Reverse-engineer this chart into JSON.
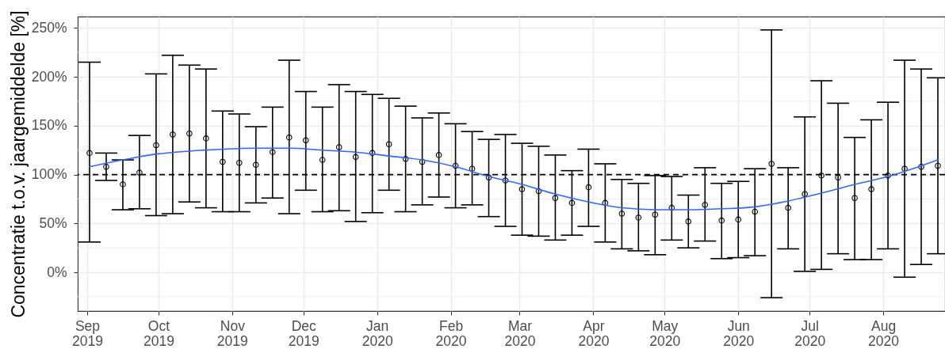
{
  "chart_data": {
    "type": "scatter",
    "ylabel": "Concentratie t.o.v. jaargemiddelde [%]",
    "x": [
      "2019-09-02",
      "2019-09-09",
      "2019-09-16",
      "2019-09-23",
      "2019-09-30",
      "2019-10-07",
      "2019-10-14",
      "2019-10-21",
      "2019-10-28",
      "2019-11-04",
      "2019-11-11",
      "2019-11-18",
      "2019-11-25",
      "2019-12-02",
      "2019-12-09",
      "2019-12-16",
      "2019-12-23",
      "2019-12-30",
      "2020-01-06",
      "2020-01-13",
      "2020-01-20",
      "2020-01-27",
      "2020-02-03",
      "2020-02-10",
      "2020-02-17",
      "2020-02-24",
      "2020-03-02",
      "2020-03-09",
      "2020-03-16",
      "2020-03-23",
      "2020-03-30",
      "2020-04-06",
      "2020-04-13",
      "2020-04-20",
      "2020-04-27",
      "2020-05-04",
      "2020-05-11",
      "2020-05-18",
      "2020-05-25",
      "2020-06-01",
      "2020-06-08",
      "2020-06-15",
      "2020-06-22",
      "2020-06-29",
      "2020-07-06",
      "2020-07-13",
      "2020-07-20",
      "2020-07-27",
      "2020-08-03",
      "2020-08-10",
      "2020-08-17",
      "2020-08-24"
    ],
    "series": [
      {
        "color": "#000000",
        "marker": "circle",
        "values": [
          122,
          108,
          90,
          102,
          130,
          141,
          142,
          137,
          113,
          112,
          110,
          123,
          138,
          135,
          115,
          128,
          118,
          122,
          131,
          116,
          113,
          120,
          109,
          106,
          97,
          94,
          85,
          83,
          76,
          71,
          87,
          71,
          60,
          56,
          59,
          66,
          52,
          69,
          53,
          54,
          62,
          111,
          66,
          80,
          99,
          97,
          76,
          85,
          99,
          106,
          108,
          109
        ],
        "errors": [
          [
            31,
            215
          ],
          [
            94,
            122
          ],
          [
            64,
            115
          ],
          [
            65,
            140
          ],
          [
            58,
            203
          ],
          [
            60,
            222
          ],
          [
            72,
            212
          ],
          [
            66,
            208
          ],
          [
            62,
            165
          ],
          [
            62,
            162
          ],
          [
            71,
            149
          ],
          [
            76,
            169
          ],
          [
            60,
            217
          ],
          [
            84,
            185
          ],
          [
            62,
            169
          ],
          [
            63,
            192
          ],
          [
            52,
            185
          ],
          [
            61,
            182
          ],
          [
            84,
            178
          ],
          [
            62,
            170
          ],
          [
            69,
            158
          ],
          [
            77,
            163
          ],
          [
            66,
            152
          ],
          [
            69,
            144
          ],
          [
            57,
            136
          ],
          [
            47,
            141
          ],
          [
            38,
            132
          ],
          [
            37,
            129
          ],
          [
            33,
            120
          ],
          [
            38,
            104
          ],
          [
            47,
            126
          ],
          [
            31,
            111
          ],
          [
            24,
            95
          ],
          [
            22,
            91
          ],
          [
            18,
            99
          ],
          [
            33,
            98
          ],
          [
            25,
            79
          ],
          [
            32,
            107
          ],
          [
            14,
            91
          ],
          [
            15,
            93
          ],
          [
            17,
            106
          ],
          [
            -26,
            248
          ],
          [
            24,
            107
          ],
          [
            1,
            159
          ],
          [
            3,
            196
          ],
          [
            19,
            173
          ],
          [
            13,
            138
          ],
          [
            13,
            156
          ],
          [
            24,
            174
          ],
          [
            -5,
            217
          ],
          [
            8,
            208
          ],
          [
            19,
            199
          ]
        ]
      },
      {
        "type": "line",
        "color": "#3366ff",
        "line_style": "solid",
        "x": [
          "2019-09-02",
          "2019-09-16",
          "2019-09-30",
          "2019-10-14",
          "2019-10-28",
          "2019-11-11",
          "2019-11-25",
          "2019-12-09",
          "2019-12-23",
          "2020-01-06",
          "2020-01-20",
          "2020-02-03",
          "2020-02-17",
          "2020-03-02",
          "2020-03-16",
          "2020-03-30",
          "2020-04-13",
          "2020-04-27",
          "2020-05-11",
          "2020-05-25",
          "2020-06-08",
          "2020-06-22",
          "2020-07-06",
          "2020-07-20",
          "2020-08-03",
          "2020-08-17",
          "2020-08-24"
        ],
        "values": [
          108,
          115,
          121,
          124,
          126,
          127,
          127,
          125,
          123,
          119,
          115,
          108,
          98,
          90,
          80,
          72,
          66,
          64,
          64,
          65,
          67,
          73,
          81,
          90,
          98,
          109,
          115
        ]
      }
    ],
    "ref_lines": [
      {
        "axis": "y",
        "value": 100,
        "color": "#000000",
        "line_style": "dashed"
      }
    ],
    "xlim": [
      "2019-08-28",
      "2020-08-27"
    ],
    "xticks": [
      {
        "value": "2019-09-01",
        "label": "Sep\n2019"
      },
      {
        "value": "2019-10-01",
        "label": "Oct\n2019"
      },
      {
        "value": "2019-11-01",
        "label": "Nov\n2019"
      },
      {
        "value": "2019-12-01",
        "label": "Dec\n2019"
      },
      {
        "value": "2020-01-01",
        "label": "Jan\n2020"
      },
      {
        "value": "2020-02-01",
        "label": "Feb\n2020"
      },
      {
        "value": "2020-03-01",
        "label": "Mar\n2020"
      },
      {
        "value": "2020-04-01",
        "label": "Apr\n2020"
      },
      {
        "value": "2020-05-01",
        "label": "May\n2020"
      },
      {
        "value": "2020-06-01",
        "label": "Jun\n2020"
      },
      {
        "value": "2020-07-01",
        "label": "Jul\n2020"
      },
      {
        "value": "2020-08-01",
        "label": "Aug\n2020"
      }
    ],
    "ylim": [
      -39.6,
      261.6
    ],
    "yticks": [
      {
        "value": -25,
        "label": null
      },
      {
        "value": 0,
        "label": "0%"
      },
      {
        "value": 25,
        "label": null
      },
      {
        "value": 50,
        "label": "50%"
      },
      {
        "value": 75,
        "label": null
      },
      {
        "value": 100,
        "label": "100%"
      },
      {
        "value": 125,
        "label": null
      },
      {
        "value": 150,
        "label": "150%"
      },
      {
        "value": 175,
        "label": null
      },
      {
        "value": 200,
        "label": "200%"
      },
      {
        "value": 225,
        "label": null
      },
      {
        "value": 250,
        "label": "250%"
      }
    ],
    "grid": true
  }
}
